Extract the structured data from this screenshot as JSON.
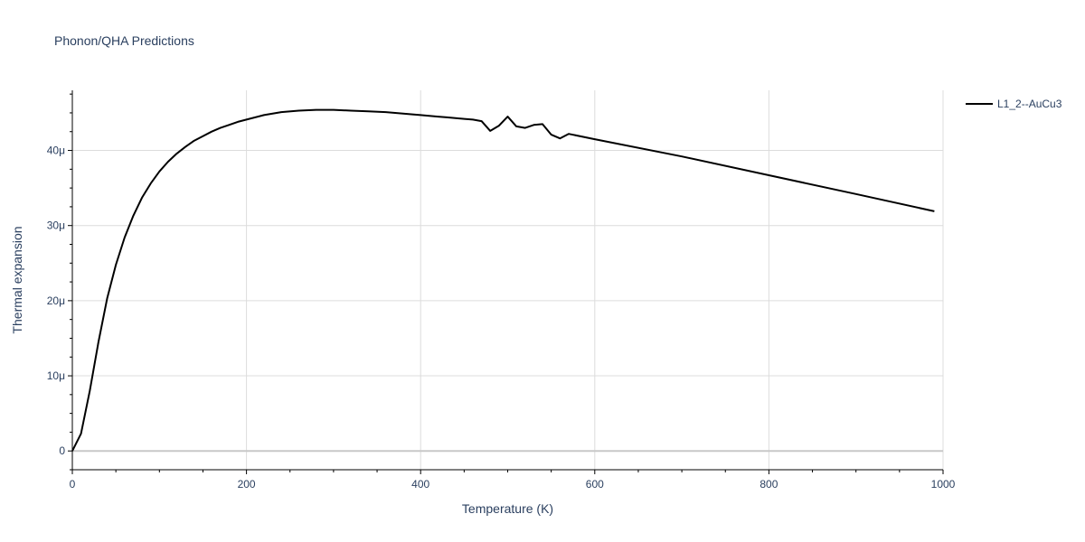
{
  "chart_data": {
    "type": "line",
    "title": "Phonon/QHA Predictions",
    "xlabel": "Temperature (K)",
    "ylabel": "Thermal expansion",
    "xlim": [
      0,
      1000
    ],
    "ylim": [
      -2.5e-06,
      4.8e-05
    ],
    "x_ticks": [
      0,
      200,
      400,
      600,
      800,
      1000
    ],
    "x_tick_labels": [
      "0",
      "200",
      "400",
      "600",
      "800",
      "1000"
    ],
    "y_ticks": [
      0,
      1e-05,
      2e-05,
      3e-05,
      4e-05
    ],
    "y_tick_labels": [
      "0",
      "10μ",
      "20μ",
      "30μ",
      "40μ"
    ],
    "grid": true,
    "legend_position": "top-right",
    "series": [
      {
        "name": "L1_2--AuCu3",
        "color": "#000000",
        "x": [
          0,
          10,
          20,
          30,
          40,
          50,
          60,
          70,
          80,
          90,
          100,
          110,
          120,
          130,
          140,
          150,
          160,
          170,
          180,
          190,
          200,
          220,
          240,
          260,
          280,
          300,
          320,
          340,
          360,
          380,
          400,
          410,
          420,
          430,
          440,
          450,
          460,
          470,
          480,
          490,
          500,
          510,
          520,
          530,
          540,
          550,
          560,
          570,
          600,
          700,
          800,
          900,
          990
        ],
        "y": [
          0,
          2.3e-06,
          8e-06,
          1.45e-05,
          2.03e-05,
          2.48e-05,
          2.84e-05,
          3.13e-05,
          3.37e-05,
          3.56e-05,
          3.72e-05,
          3.85e-05,
          3.96e-05,
          4.05e-05,
          4.13e-05,
          4.19e-05,
          4.25e-05,
          4.3e-05,
          4.34e-05,
          4.38e-05,
          4.41e-05,
          4.47e-05,
          4.51e-05,
          4.53e-05,
          4.54e-05,
          4.54e-05,
          4.53e-05,
          4.52e-05,
          4.51e-05,
          4.49e-05,
          4.47e-05,
          4.46e-05,
          4.45e-05,
          4.44e-05,
          4.43e-05,
          4.42e-05,
          4.41e-05,
          4.39e-05,
          4.26e-05,
          4.33e-05,
          4.45e-05,
          4.32e-05,
          4.3e-05,
          4.34e-05,
          4.35e-05,
          4.21e-05,
          4.16e-05,
          4.22e-05,
          4.15e-05,
          3.92e-05,
          3.67e-05,
          3.42e-05,
          3.19e-05
        ]
      }
    ]
  }
}
